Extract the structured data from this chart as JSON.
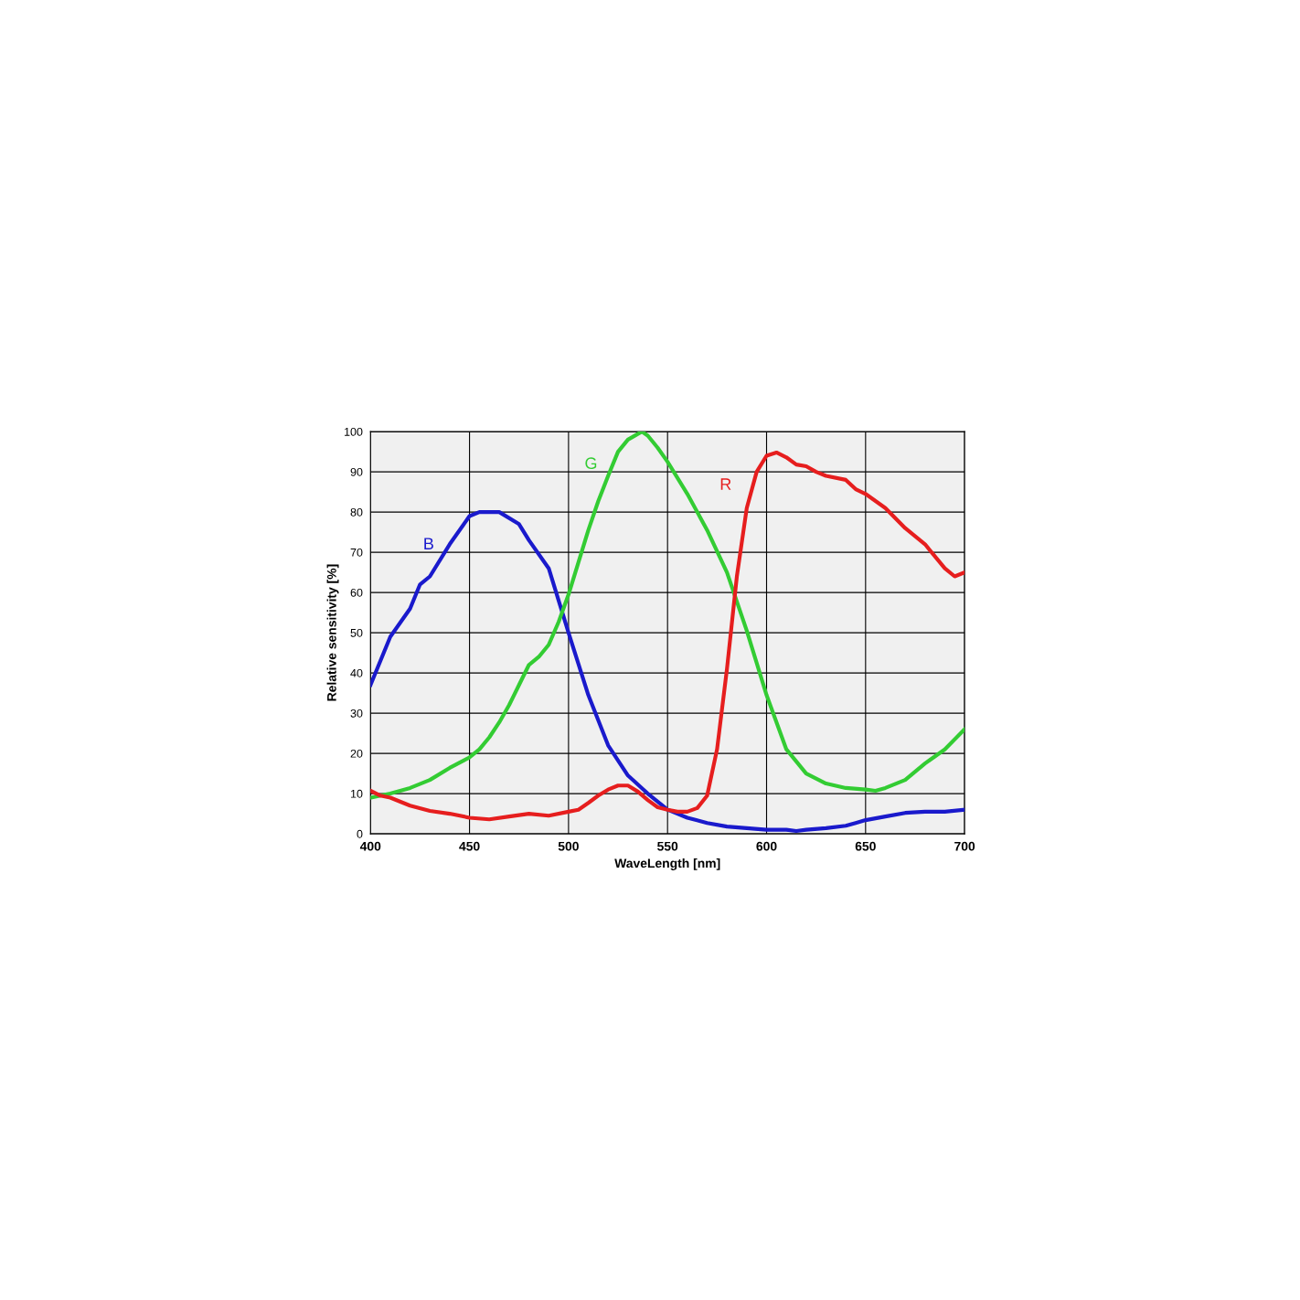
{
  "chart_data": {
    "type": "line",
    "xlabel": "WaveLength [nm]",
    "ylabel": "Relative sensitivity [%]",
    "xlim": [
      400,
      700
    ],
    "xticks": [
      400,
      450,
      500,
      550,
      600,
      650,
      700
    ],
    "ylim": [
      0,
      100
    ],
    "yticks": [
      0,
      10,
      20,
      30,
      40,
      50,
      60,
      70,
      80,
      90,
      100
    ],
    "grid": true,
    "marker": "none",
    "line_style": "solid",
    "series": [
      {
        "name": "B",
        "color": "#1a1acc",
        "x": [
          400,
          410,
          420,
          425,
          430,
          440,
          450,
          455,
          465,
          475,
          480,
          490,
          500,
          510,
          520,
          530,
          540,
          550,
          560,
          570,
          580,
          590,
          600,
          610,
          615,
          620,
          630,
          640,
          645,
          650,
          660,
          670,
          680,
          690,
          700
        ],
        "values": [
          37,
          49,
          56,
          62,
          64,
          72,
          79,
          80,
          80,
          77,
          73,
          66,
          50,
          34.5,
          22,
          14.5,
          10,
          6,
          4,
          2.7,
          1.8,
          1.4,
          1,
          1,
          0.7,
          1,
          1.4,
          2,
          2.7,
          3.4,
          4.3,
          5.2,
          5.5,
          5.5,
          6
        ]
      },
      {
        "name": "G",
        "color": "#33cc33",
        "x": [
          400,
          410,
          420,
          430,
          440,
          450,
          455,
          460,
          465,
          470,
          475,
          480,
          485,
          490,
          495,
          500,
          505,
          510,
          515,
          520,
          525,
          530,
          537,
          540,
          545,
          550,
          560,
          570,
          580,
          590,
          600,
          610,
          620,
          630,
          640,
          650,
          655,
          660,
          670,
          680,
          690,
          700
        ],
        "values": [
          9,
          10,
          11.4,
          13.4,
          16.4,
          19,
          21,
          24,
          27.7,
          32,
          37,
          42,
          44,
          47,
          52.7,
          59.5,
          67.5,
          75.5,
          82.7,
          89,
          95,
          98,
          100,
          99,
          96,
          92.5,
          84.5,
          75.5,
          65,
          50.5,
          34.5,
          21,
          15,
          12.5,
          11.4,
          11,
          10.7,
          11.4,
          13.4,
          17.5,
          21,
          26
        ]
      },
      {
        "name": "R",
        "color": "#e61e1e",
        "x": [
          400,
          405,
          410,
          420,
          430,
          440,
          450,
          460,
          470,
          480,
          490,
          500,
          505,
          510,
          515,
          520,
          525,
          530,
          535,
          540,
          545,
          550,
          555,
          560,
          565,
          570,
          575,
          580,
          585,
          590,
          595,
          600,
          605,
          610,
          615,
          620,
          625,
          630,
          640,
          645,
          650,
          660,
          670,
          680,
          690,
          695,
          700
        ],
        "values": [
          10.7,
          9.5,
          9,
          7,
          5.7,
          5,
          4,
          3.6,
          4.3,
          5,
          4.5,
          5.5,
          6,
          7.7,
          9.5,
          11,
          12,
          12,
          10.5,
          8.4,
          6.6,
          6,
          5.5,
          5.5,
          6.4,
          9.5,
          21,
          41,
          64,
          81,
          90,
          94,
          94.8,
          93.6,
          91.8,
          91.4,
          90,
          89,
          88,
          85.7,
          84.5,
          81,
          76,
          72,
          66,
          64,
          65
        ]
      }
    ]
  }
}
